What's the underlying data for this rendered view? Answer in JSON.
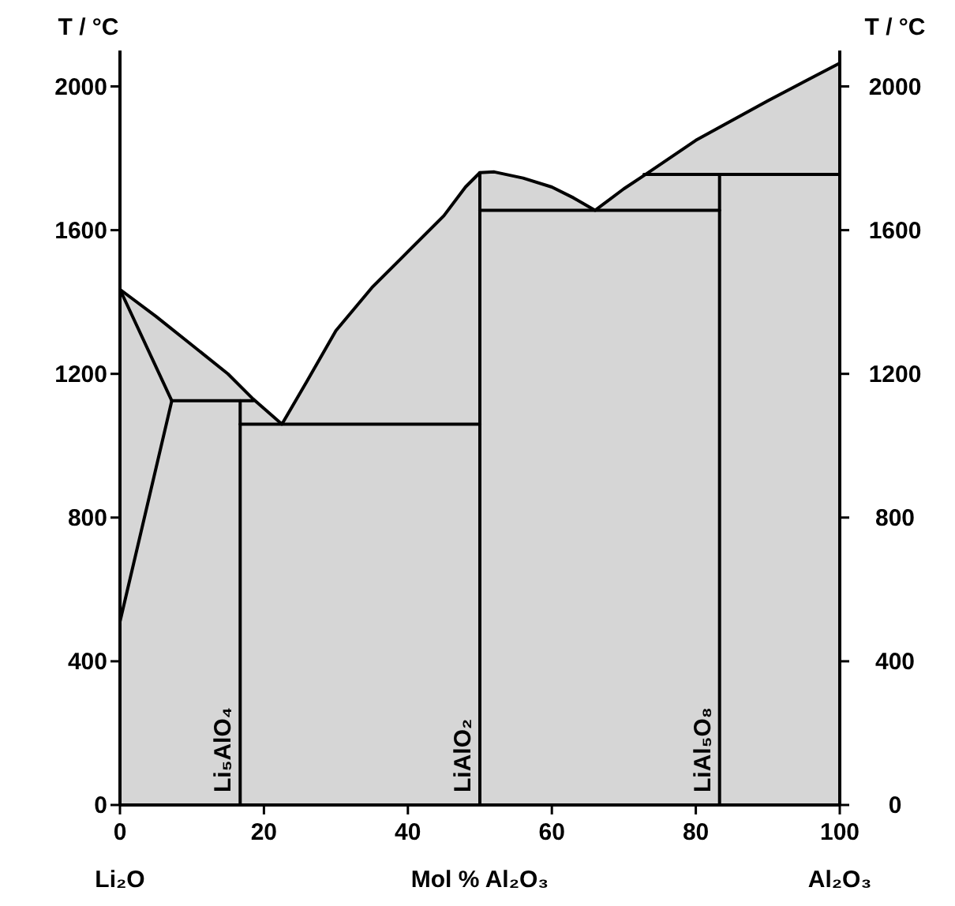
{
  "chart_data": {
    "type": "line",
    "xlabel": "Mol % Al₂O₃",
    "ylabel": "T / °C",
    "y2label": "T / °C",
    "annotations": [
      "Li₂O",
      "Al₂O₃"
    ],
    "xlim": [
      0,
      100
    ],
    "xticks": [
      0,
      20,
      40,
      60,
      80,
      100
    ],
    "ylim": [
      0,
      2100
    ],
    "yticks": [
      0,
      400,
      800,
      1200,
      1600,
      2000
    ],
    "y2lim": [
      0,
      2100
    ],
    "y2ticks": [
      0,
      400,
      800,
      1200,
      1600,
      2000
    ],
    "grid": false,
    "marker": "none",
    "line_style": "solid",
    "series": [
      {
        "type": "area",
        "color": "#d6d6d6",
        "x": [
          0,
          5,
          10,
          15,
          18.5,
          20.5,
          22.5,
          26,
          30,
          35,
          40,
          45,
          48,
          50,
          52,
          56,
          60,
          63,
          66,
          70,
          73,
          80,
          90,
          100
        ],
        "values": [
          1435,
          1360,
          1280,
          1200,
          1130,
          1095,
          1060,
          1180,
          1320,
          1440,
          1540,
          1640,
          1720,
          1760,
          1762,
          1745,
          1720,
          1690,
          1655,
          1715,
          1755,
          1850,
          1960,
          2065
        ]
      },
      {
        "color": "#000000",
        "x": [
          0,
          7.2
        ],
        "values": [
          510,
          1125
        ]
      },
      {
        "color": "#000000",
        "x": [
          0,
          7.2
        ],
        "values": [
          1435,
          1125
        ]
      },
      {
        "color": "#000000",
        "x": [
          7.2,
          18.5
        ],
        "values": [
          1125,
          1125
        ]
      },
      {
        "color": "#000000",
        "x": [
          16.7,
          50
        ],
        "values": [
          1060,
          1060
        ]
      },
      {
        "color": "#000000",
        "x": [
          50,
          83.3
        ],
        "values": [
          1655,
          1655
        ]
      },
      {
        "color": "#000000",
        "x": [
          72.8,
          100
        ],
        "values": [
          1755,
          1755
        ]
      },
      {
        "name": "Li₅AlO₄",
        "color": "#000000",
        "x": [
          16.7,
          16.7
        ],
        "values": [
          0,
          1125
        ]
      },
      {
        "name": "LiAlO₂",
        "color": "#000000",
        "x": [
          50,
          50
        ],
        "values": [
          0,
          1760
        ]
      },
      {
        "name": "LiAl₅O₈",
        "color": "#000000",
        "x": [
          83.3,
          83.3
        ],
        "values": [
          0,
          1755
        ]
      }
    ]
  }
}
